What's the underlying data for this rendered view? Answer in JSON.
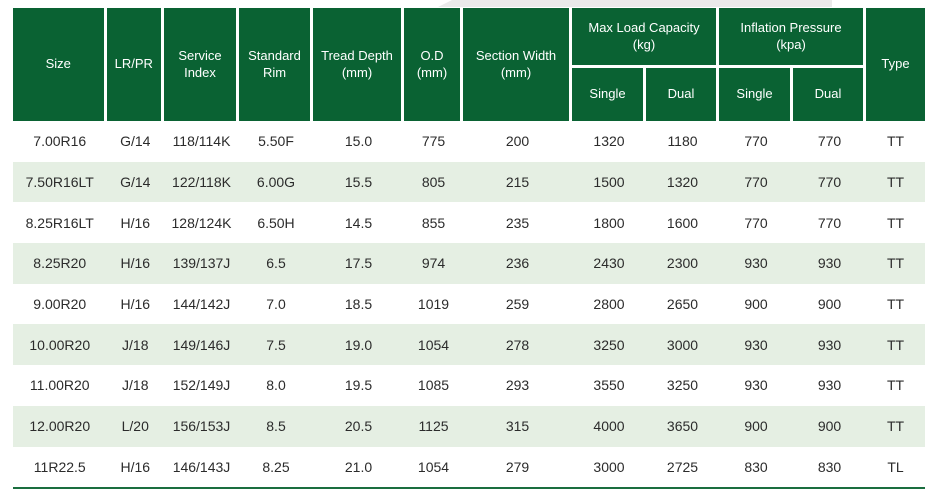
{
  "page": {
    "background": "#ffffff"
  },
  "decor": {
    "top_strip_color": "#eaeaea"
  },
  "table": {
    "theme": {
      "header_bg": "#0a6233",
      "header_text": "#ffffff",
      "stripe_bg": "#e5efe3",
      "row_bg": "#ffffff",
      "body_text": "#2b2b2b",
      "grid_line": "#ffffff",
      "bottom_rule": "#1a6e3f"
    },
    "headers": {
      "size": "Size",
      "lr_pr": "LR/PR",
      "service_index": "Service Index",
      "standard_rim": "Standard Rim",
      "tread_depth": "Tread Depth",
      "tread_depth_unit": "(mm)",
      "od": "O.D",
      "od_unit": "(mm)",
      "section_width": "Section Width",
      "section_width_unit": "(mm)",
      "max_load": "Max Load Capacity",
      "max_load_unit": "(kg)",
      "max_load_single": "Single",
      "max_load_dual": "Dual",
      "inflation": "Inflation Pressure",
      "inflation_unit": "(kpa)",
      "inflation_single": "Single",
      "inflation_dual": "Dual",
      "type": "Type"
    },
    "rows": [
      [
        "7.00R16",
        "G/14",
        "118/114K",
        "5.50F",
        "15.0",
        "775",
        "200",
        "1320",
        "1180",
        "770",
        "770",
        "TT"
      ],
      [
        "7.50R16LT",
        "G/14",
        "122/118K",
        "6.00G",
        "15.5",
        "805",
        "215",
        "1500",
        "1320",
        "770",
        "770",
        "TT"
      ],
      [
        "8.25R16LT",
        "H/16",
        "128/124K",
        "6.50H",
        "14.5",
        "855",
        "235",
        "1800",
        "1600",
        "770",
        "770",
        "TT"
      ],
      [
        "8.25R20",
        "H/16",
        "139/137J",
        "6.5",
        "17.5",
        "974",
        "236",
        "2430",
        "2300",
        "930",
        "930",
        "TT"
      ],
      [
        "9.00R20",
        "H/16",
        "144/142J",
        "7.0",
        "18.5",
        "1019",
        "259",
        "2800",
        "2650",
        "900",
        "900",
        "TT"
      ],
      [
        "10.00R20",
        "J/18",
        "149/146J",
        "7.5",
        "19.0",
        "1054",
        "278",
        "3250",
        "3000",
        "930",
        "930",
        "TT"
      ],
      [
        "11.00R20",
        "J/18",
        "152/149J",
        "8.0",
        "19.5",
        "1085",
        "293",
        "3550",
        "3250",
        "930",
        "930",
        "TT"
      ],
      [
        "12.00R20",
        "L/20",
        "156/153J",
        "8.5",
        "20.5",
        "1125",
        "315",
        "4000",
        "3650",
        "900",
        "900",
        "TT"
      ],
      [
        "11R22.5",
        "H/16",
        "146/143J",
        "8.25",
        "21.0",
        "1054",
        "279",
        "3000",
        "2725",
        "830",
        "830",
        "TL"
      ]
    ]
  }
}
